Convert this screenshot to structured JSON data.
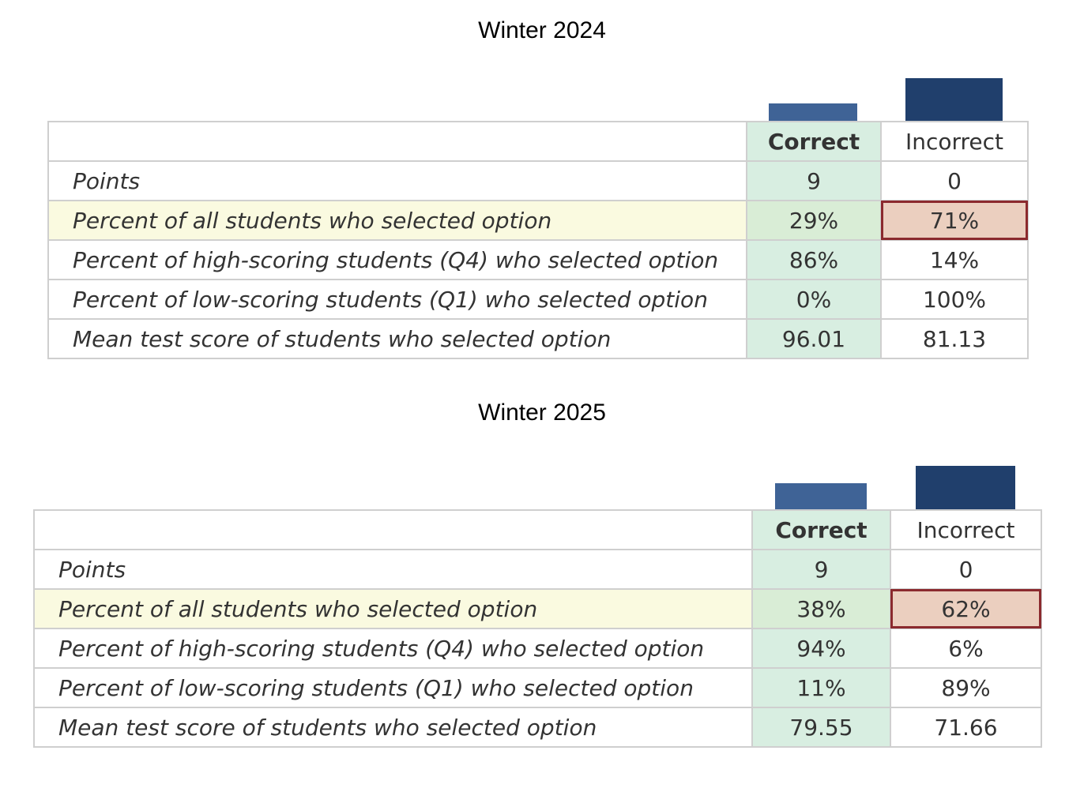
{
  "colors": {
    "correct_bar": "#3f6396",
    "incorrect_bar": "#203f6c",
    "highlight_border": "#8b2a2e"
  },
  "chart_data": [
    {
      "type": "table",
      "title": "Winter 2024",
      "columns": [
        "Correct",
        "Incorrect"
      ],
      "bar_values": [
        29,
        71
      ],
      "rows": [
        {
          "label": "Points",
          "values": [
            "9",
            "0"
          ]
        },
        {
          "label": "Percent of all students who selected option",
          "values": [
            "29%",
            "71%"
          ],
          "highlighted": true
        },
        {
          "label": "Percent of high-scoring students (Q4) who selected option",
          "values": [
            "86%",
            "14%"
          ]
        },
        {
          "label": "Percent of low-scoring students (Q1) who selected option",
          "values": [
            "0%",
            "100%"
          ]
        },
        {
          "label": "Mean test score of students who selected option",
          "values": [
            "96.01",
            "81.13"
          ]
        }
      ]
    },
    {
      "type": "table",
      "title": "Winter 2025",
      "columns": [
        "Correct",
        "Incorrect"
      ],
      "bar_values": [
        38,
        62
      ],
      "rows": [
        {
          "label": "Points",
          "values": [
            "9",
            "0"
          ]
        },
        {
          "label": "Percent of all students who selected option",
          "values": [
            "38%",
            "62%"
          ],
          "highlighted": true
        },
        {
          "label": "Percent of high-scoring students (Q4) who selected option",
          "values": [
            "94%",
            "6%"
          ]
        },
        {
          "label": "Percent of low-scoring students (Q1) who selected option",
          "values": [
            "11%",
            "89%"
          ]
        },
        {
          "label": "Mean test score of students who selected option",
          "values": [
            "79.55",
            "71.66"
          ]
        }
      ]
    }
  ]
}
